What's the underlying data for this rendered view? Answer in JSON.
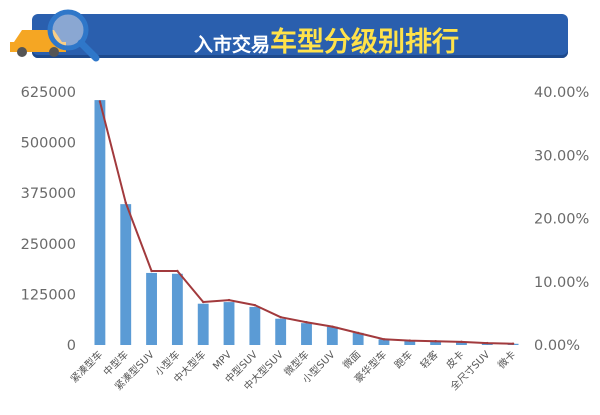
{
  "header": {
    "title_part1": "入市交易",
    "title_part2": "车型分级别排行",
    "logo_icon": "car-magnifier-icon"
  },
  "colors": {
    "bar": "#5b9bd5",
    "line": "#a23a3d",
    "banner": "#2a5fae",
    "title_highlight": "#ffe24a"
  },
  "chart_data": {
    "type": "bar",
    "categories": [
      "紧凑型车",
      "中型车",
      "紧凑型SUV",
      "小型车",
      "中大型车",
      "MPV",
      "中型SUV",
      "中大型SUV",
      "微型车",
      "小型SUV",
      "微面",
      "豪华型车",
      "跑车",
      "轻客",
      "皮卡",
      "全尺寸SUV",
      "微卡"
    ],
    "series": [
      {
        "type": "bar",
        "axis": "left",
        "values": [
          605000,
          348000,
          178000,
          176000,
          102000,
          106000,
          94000,
          65000,
          54000,
          45000,
          30000,
          14000,
          11000,
          10000,
          8000,
          5000,
          3000
        ]
      },
      {
        "type": "line",
        "axis": "right",
        "values": [
          38.5,
          22.5,
          11.7,
          11.7,
          6.8,
          7.1,
          6.3,
          4.4,
          3.6,
          2.9,
          1.9,
          0.9,
          0.7,
          0.6,
          0.5,
          0.3,
          0.2
        ]
      }
    ],
    "y_left": {
      "min": 0,
      "max": 625000,
      "ticks": [
        "0",
        "125000",
        "250000",
        "375000",
        "500000",
        "625000"
      ]
    },
    "y_right": {
      "min": 0,
      "max": 40,
      "ticks": [
        "0.00%",
        "10.00%",
        "20.00%",
        "30.00%",
        "40.00%"
      ]
    },
    "grid": false,
    "legend": "none"
  }
}
